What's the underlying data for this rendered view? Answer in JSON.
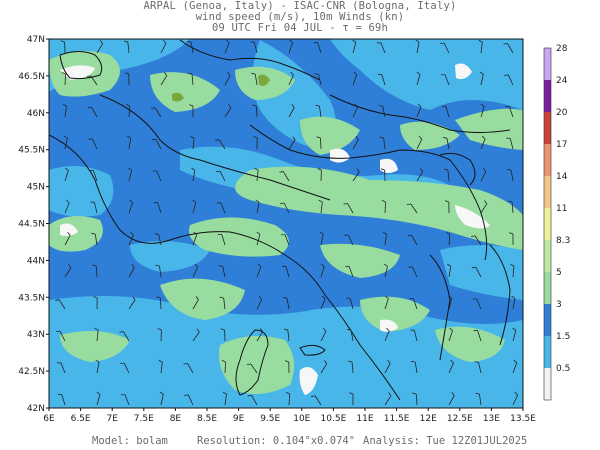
{
  "header": {
    "line1": "ARPAL (Genoa, Italy)  -  ISAC-CNR (Bologna, Italy)",
    "line2": "wind speed (m/s), 10m Winds (kn)",
    "line3": "09 UTC Fri 04 JUL  -  τ = 69h"
  },
  "axes": {
    "lat_labels": [
      "47N",
      "46.5N",
      "46N",
      "45.5N",
      "45N",
      "44.5N",
      "44N",
      "43.5N",
      "43N",
      "42.5N",
      "42N"
    ],
    "lon_labels": [
      "6E",
      "6.5E",
      "7E",
      "7.5E",
      "8E",
      "8.5E",
      "9E",
      "9.5E",
      "10E",
      "10.5E",
      "11E",
      "11.5E",
      "12E",
      "12.5E",
      "13E",
      "13.5E"
    ],
    "lat_range": [
      42,
      47
    ],
    "lon_range": [
      6,
      13.5
    ]
  },
  "colorbar": {
    "labels": [
      "0.5",
      "1.5",
      "3",
      "5",
      "8.3",
      "11",
      "14",
      "17",
      "20",
      "24",
      "28"
    ],
    "colors": [
      "#f2f2f2",
      "#49b6ea",
      "#2f7fd8",
      "#98dca0",
      "#bfe8a4",
      "#ecf29a",
      "#f2c78c",
      "#ea9470",
      "#c8443a",
      "#7a1fa0",
      "#c8a8f0"
    ]
  },
  "map_colors": {
    "base": "#2f7fd8",
    "light_blue": "#49b6ea",
    "green": "#98dca0",
    "white": "#f7f7f7",
    "dark_green": "#7aa63a"
  },
  "footer": {
    "model": "Model: bolam",
    "resolution": "Resolution: 0.104°x0.074°",
    "analysis": "Analysis: Tue 12Z01JUL2025"
  }
}
